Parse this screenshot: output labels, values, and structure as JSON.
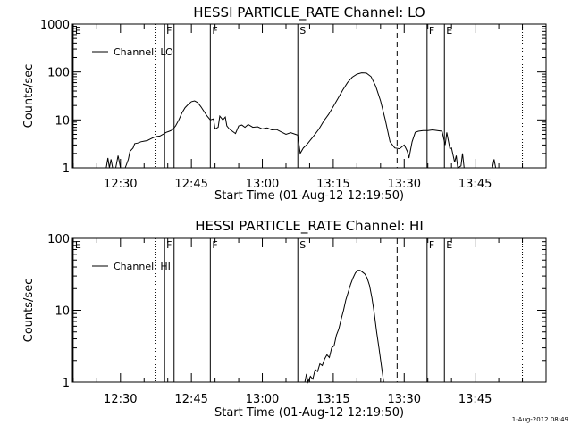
{
  "footer": "1-Aug-2012 08:49",
  "chart_data": [
    {
      "type": "line",
      "title": "HESSI PARTICLE_RATE Channel: LO",
      "xlabel": "Start Time (01-Aug-12 12:19:50)",
      "ylabel": "Counts/sec",
      "y_scale": "log",
      "xlim": [
        "12:19:50",
        "14:00:00"
      ],
      "ylim": [
        1,
        1000
      ],
      "x_ticks": [
        "12:30",
        "12:45",
        "13:00",
        "13:15",
        "13:30",
        "13:45"
      ],
      "y_ticks": [
        "1",
        "10",
        "100",
        "1000"
      ],
      "legend": {
        "position": "top-left",
        "entries": [
          "Channel: LO"
        ]
      },
      "markers": [
        {
          "time": "12:20:00",
          "label": "E",
          "style": "solid"
        },
        {
          "time": "12:37:20",
          "label": "",
          "style": "dotted"
        },
        {
          "time": "12:39:20",
          "label": "F",
          "style": "solid"
        },
        {
          "time": "12:41:20",
          "label": "",
          "style": "solid"
        },
        {
          "time": "12:49:00",
          "label": "F",
          "style": "solid"
        },
        {
          "time": "13:07:30",
          "label": "S",
          "style": "solid"
        },
        {
          "time": "13:28:30",
          "label": "",
          "style": "dashed"
        },
        {
          "time": "13:34:50",
          "label": "F",
          "style": "solid"
        },
        {
          "time": "13:38:30",
          "label": "E",
          "style": "solid"
        },
        {
          "time": "13:55:00",
          "label": "",
          "style": "dotted"
        }
      ],
      "series": [
        {
          "name": "Channel: LO",
          "segments": [
            [
              [
                "12:27:00",
                1
              ],
              [
                "12:27:20",
                1.6
              ],
              [
                "12:27:40",
                1
              ],
              [
                "12:28:00",
                1.5
              ],
              [
                "12:28:20",
                1
              ],
              [
                "12:29:00",
                1
              ],
              [
                "12:29:30",
                1.8
              ],
              [
                "12:30:00",
                1
              ],
              [
                "12:31:00",
                1
              ],
              [
                "12:31:40",
                1.5
              ],
              [
                "12:32:00",
                2.2
              ],
              [
                "12:32:40",
                2.6
              ],
              [
                "12:33:00",
                3.2
              ],
              [
                "12:33:40",
                3.3
              ],
              [
                "12:34:20",
                3.5
              ],
              [
                "12:35:00",
                3.6
              ],
              [
                "12:35:40",
                3.7
              ],
              [
                "12:36:20",
                4.0
              ],
              [
                "12:37:00",
                4.3
              ],
              [
                "12:37:40",
                4.5
              ],
              [
                "12:38:20",
                4.6
              ],
              [
                "12:39:00",
                5.0
              ],
              [
                "12:39:40",
                5.5
              ],
              [
                "12:40:20",
                5.8
              ],
              [
                "12:41:00",
                6.2
              ],
              [
                "12:41:40",
                7.5
              ],
              [
                "12:42:20",
                10
              ],
              [
                "12:43:00",
                14
              ],
              [
                "12:43:40",
                18
              ],
              [
                "12:44:20",
                21
              ],
              [
                "12:45:00",
                24
              ],
              [
                "12:45:40",
                25
              ],
              [
                "12:46:20",
                23
              ],
              [
                "12:47:00",
                19
              ],
              [
                "12:47:40",
                15
              ],
              [
                "12:48:20",
                12
              ],
              [
                "12:49:00",
                10
              ],
              [
                "12:49:40",
                10.5
              ],
              [
                "12:50:00",
                6.5
              ],
              [
                "12:50:40",
                7
              ],
              [
                "12:51:00",
                12
              ],
              [
                "12:51:40",
                10
              ],
              [
                "12:52:10",
                11.5
              ],
              [
                "12:52:30",
                7.5
              ],
              [
                "12:53:00",
                6.5
              ],
              [
                "12:53:40",
                5.8
              ],
              [
                "12:54:20",
                5.2
              ],
              [
                "12:55:00",
                7.5
              ],
              [
                "12:55:40",
                7.8
              ],
              [
                "12:56:20",
                7.0
              ],
              [
                "12:57:00",
                8.0
              ],
              [
                "12:58:00",
                7.0
              ],
              [
                "12:59:00",
                7.2
              ],
              [
                "13:00:00",
                6.5
              ],
              [
                "13:01:00",
                6.8
              ],
              [
                "13:02:00",
                6.2
              ],
              [
                "13:03:00",
                6.3
              ],
              [
                "13:04:00",
                5.6
              ],
              [
                "13:05:00",
                5.0
              ],
              [
                "13:06:00",
                5.4
              ],
              [
                "13:07:00",
                5.0
              ],
              [
                "13:07:30",
                4.8
              ],
              [
                "13:08:00",
                2.0
              ],
              [
                "13:08:40",
                2.6
              ],
              [
                "13:09:20",
                3.0
              ],
              [
                "13:10:00",
                3.6
              ],
              [
                "13:11:00",
                4.8
              ],
              [
                "13:12:00",
                6.5
              ],
              [
                "13:13:00",
                9.5
              ],
              [
                "13:14:00",
                13
              ],
              [
                "13:15:00",
                19
              ],
              [
                "13:16:00",
                28
              ],
              [
                "13:17:00",
                42
              ],
              [
                "13:18:00",
                60
              ],
              [
                "13:19:00",
                78
              ],
              [
                "13:20:00",
                90
              ],
              [
                "13:21:00",
                96
              ],
              [
                "13:22:00",
                95
              ],
              [
                "13:23:00",
                80
              ],
              [
                "13:24:00",
                50
              ],
              [
                "13:25:00",
                25
              ],
              [
                "13:26:00",
                10
              ],
              [
                "13:27:00",
                3.5
              ],
              [
                "13:28:00",
                2.6
              ],
              [
                "13:29:00",
                2.5
              ],
              [
                "13:30:00",
                3.0
              ],
              [
                "13:30:40",
                2.2
              ],
              [
                "13:31:00",
                1.6
              ],
              [
                "13:31:40",
                3.5
              ],
              [
                "13:32:20",
                5.5
              ],
              [
                "13:33:00",
                5.8
              ],
              [
                "13:34:00",
                6.0
              ],
              [
                "13:35:00",
                6.0
              ],
              [
                "13:36:00",
                6.2
              ],
              [
                "13:37:00",
                6.0
              ],
              [
                "13:38:00",
                5.8
              ],
              [
                "13:38:40",
                3.0
              ],
              [
                "13:39:00",
                5.5
              ],
              [
                "13:39:40",
                2.5
              ],
              [
                "13:40:00",
                2.6
              ],
              [
                "13:40:40",
                1.3
              ],
              [
                "13:41:00",
                1.8
              ],
              [
                "13:41:20",
                1.0
              ],
              [
                "13:42:00",
                1.1
              ],
              [
                "13:42:20",
                2.0
              ],
              [
                "13:42:40",
                1.0
              ]
            ],
            [
              [
                "13:48:40",
                1.0
              ],
              [
                "13:49:00",
                1.5
              ],
              [
                "13:49:20",
                1.0
              ]
            ]
          ]
        }
      ]
    },
    {
      "type": "line",
      "title": "HESSI PARTICLE_RATE Channel: HI",
      "xlabel": "Start Time (01-Aug-12 12:19:50)",
      "ylabel": "Counts/sec",
      "y_scale": "log",
      "xlim": [
        "12:19:50",
        "14:00:00"
      ],
      "ylim": [
        1,
        100
      ],
      "x_ticks": [
        "12:30",
        "12:45",
        "13:00",
        "13:15",
        "13:30",
        "13:45"
      ],
      "y_ticks": [
        "1",
        "10",
        "100"
      ],
      "legend": {
        "position": "top-left",
        "entries": [
          "Channel: HI"
        ]
      },
      "markers": [
        {
          "time": "12:20:00",
          "label": "E",
          "style": "solid"
        },
        {
          "time": "12:37:20",
          "label": "",
          "style": "dotted"
        },
        {
          "time": "12:39:20",
          "label": "F",
          "style": "solid"
        },
        {
          "time": "12:41:20",
          "label": "",
          "style": "solid"
        },
        {
          "time": "12:49:00",
          "label": "F",
          "style": "solid"
        },
        {
          "time": "13:07:30",
          "label": "S",
          "style": "solid"
        },
        {
          "time": "13:28:30",
          "label": "",
          "style": "dashed"
        },
        {
          "time": "13:34:50",
          "label": "F",
          "style": "solid"
        },
        {
          "time": "13:38:30",
          "label": "E",
          "style": "solid"
        },
        {
          "time": "13:55:00",
          "label": "",
          "style": "dotted"
        }
      ],
      "series": [
        {
          "name": "Channel: HI",
          "segments": [
            [
              [
                "13:09:00",
                1.0
              ],
              [
                "13:09:20",
                1.3
              ],
              [
                "13:09:40",
                1.0
              ],
              [
                "13:10:10",
                1.2
              ],
              [
                "13:10:40",
                1.1
              ],
              [
                "13:11:10",
                1.5
              ],
              [
                "13:11:40",
                1.4
              ],
              [
                "13:12:10",
                1.8
              ],
              [
                "13:12:40",
                1.7
              ],
              [
                "13:13:10",
                2.1
              ],
              [
                "13:13:40",
                2.4
              ],
              [
                "13:14:10",
                2.2
              ],
              [
                "13:14:40",
                3.0
              ],
              [
                "13:15:10",
                3.2
              ],
              [
                "13:15:40",
                4.5
              ],
              [
                "13:16:10",
                5.5
              ],
              [
                "13:16:40",
                7.5
              ],
              [
                "13:17:10",
                10
              ],
              [
                "13:17:40",
                14
              ],
              [
                "13:18:10",
                18
              ],
              [
                "13:18:40",
                23
              ],
              [
                "13:19:10",
                28
              ],
              [
                "13:19:40",
                33
              ],
              [
                "13:20:10",
                36
              ],
              [
                "13:20:40",
                36
              ],
              [
                "13:21:10",
                34
              ],
              [
                "13:21:40",
                32
              ],
              [
                "13:22:10",
                28
              ],
              [
                "13:22:40",
                22
              ],
              [
                "13:23:10",
                15
              ],
              [
                "13:23:40",
                9
              ],
              [
                "13:24:10",
                5
              ],
              [
                "13:24:40",
                3
              ],
              [
                "13:25:10",
                1.7
              ],
              [
                "13:25:40",
                1.0
              ]
            ]
          ]
        }
      ]
    }
  ]
}
